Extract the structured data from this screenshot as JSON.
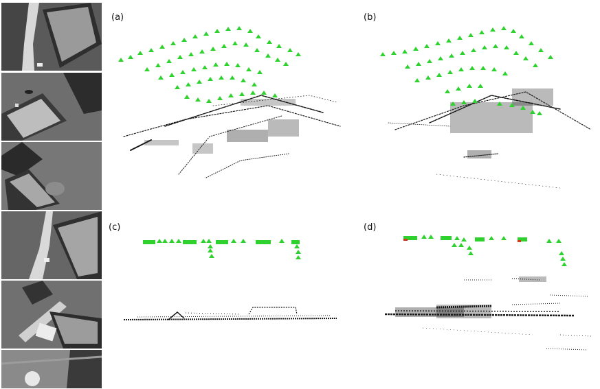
{
  "figure": {
    "panels": [
      {
        "id": "a",
        "label": "(a)"
      },
      {
        "id": "b",
        "label": "(b)"
      },
      {
        "id": "c",
        "label": "(c)"
      },
      {
        "id": "d",
        "label": "(d)"
      }
    ],
    "thumbnails": [
      {
        "id": "frame-1"
      },
      {
        "id": "frame-2"
      },
      {
        "id": "frame-3"
      },
      {
        "id": "frame-4"
      },
      {
        "id": "frame-5"
      },
      {
        "id": "frame-6"
      }
    ],
    "colors": {
      "camera_marker": "#2fd12f",
      "camera_marker_tip": "#d43a1a",
      "point_cloud": "#1a1a1a",
      "aerial_ground": "#6e6e6e",
      "aerial_roof": "#3c3c3c",
      "aerial_road": "#d9d9d9"
    }
  }
}
